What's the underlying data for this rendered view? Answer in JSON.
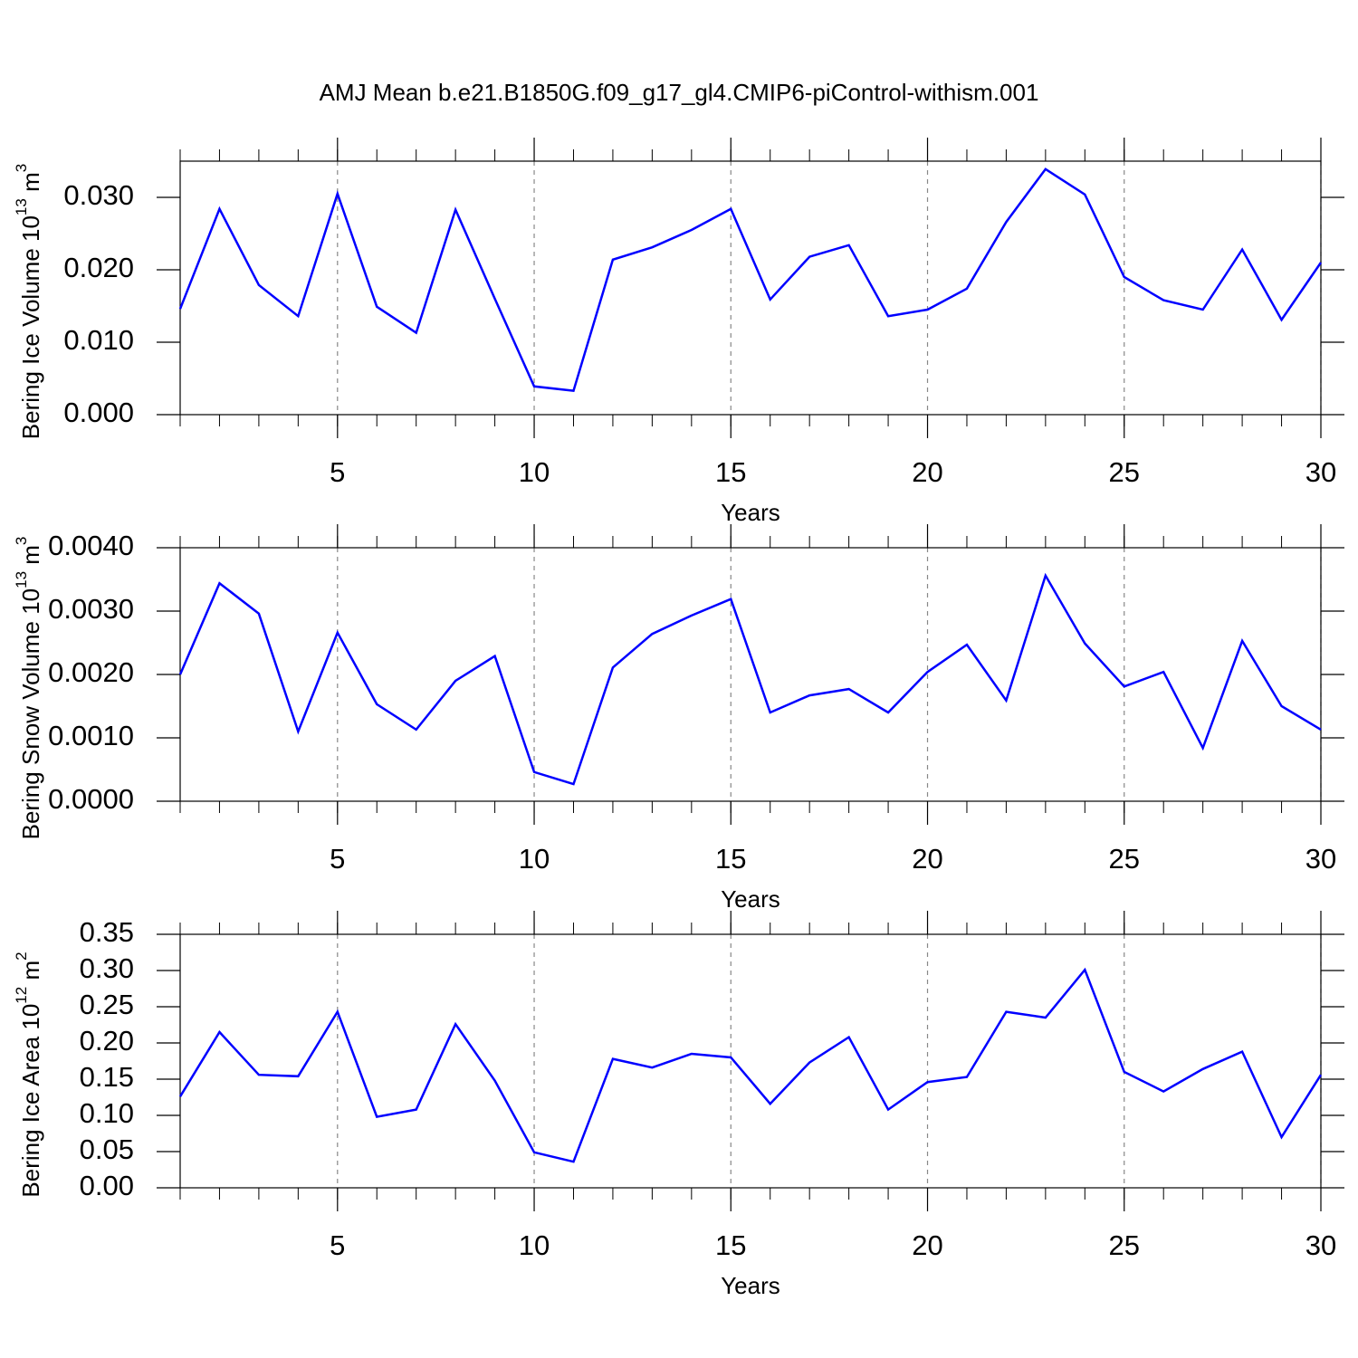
{
  "title": "AMJ Mean b.e21.B1850G.f09_g17_gl4.CMIP6-piControl-withism.001",
  "chart_data": [
    {
      "type": "line",
      "ylabel": [
        "Bering Ice Volume 10",
        "13",
        " m",
        "3"
      ],
      "xlabel": "Years",
      "x": [
        1,
        2,
        3,
        4,
        5,
        6,
        7,
        8,
        9,
        10,
        11,
        12,
        13,
        14,
        15,
        16,
        17,
        18,
        19,
        20,
        21,
        22,
        23,
        24,
        25,
        26,
        27,
        28,
        29,
        30
      ],
      "series": [
        {
          "color": "#0000ff",
          "values": [
            0.0146,
            0.0284,
            0.0179,
            0.0136,
            0.0305,
            0.0149,
            0.0113,
            0.0283,
            0.016,
            0.0039,
            0.0033,
            0.0214,
            0.0231,
            0.0255,
            0.0284,
            0.0159,
            0.0218,
            0.0234,
            0.0136,
            0.0145,
            0.0174,
            0.0266,
            0.0339,
            0.0304,
            0.019,
            0.0158,
            0.0145,
            0.0228,
            0.0131,
            0.021
          ]
        }
      ],
      "xlim": [
        1,
        30
      ],
      "xticks": [
        5,
        10,
        15,
        20,
        25,
        30
      ],
      "ylim": [
        0,
        0.035
      ],
      "yticks": [
        {
          "value": 0,
          "label": "0.000"
        },
        {
          "value": 0.01,
          "label": "0.010"
        },
        {
          "value": 0.02,
          "label": "0.020"
        },
        {
          "value": 0.03,
          "label": "0.030"
        }
      ],
      "grid": "x"
    },
    {
      "type": "line",
      "ylabel": [
        "Bering Snow Volume 10",
        "13",
        " m",
        "3"
      ],
      "xlabel": "Years",
      "x": [
        1,
        2,
        3,
        4,
        5,
        6,
        7,
        8,
        9,
        10,
        11,
        12,
        13,
        14,
        15,
        16,
        17,
        18,
        19,
        20,
        21,
        22,
        23,
        24,
        25,
        26,
        27,
        28,
        29,
        30
      ],
      "series": [
        {
          "color": "#0000ff",
          "values": [
            0.002,
            0.00344,
            0.00296,
            0.0011,
            0.00266,
            0.00153,
            0.00113,
            0.0019,
            0.00229,
            0.00046,
            0.00027,
            0.00211,
            0.00264,
            0.00293,
            0.00319,
            0.0014,
            0.00167,
            0.00177,
            0.0014,
            0.00204,
            0.00247,
            0.00159,
            0.00356,
            0.00249,
            0.00181,
            0.00204,
            0.00084,
            0.00253,
            0.0015,
            0.00113
          ]
        }
      ],
      "xlim": [
        1,
        30
      ],
      "xticks": [
        5,
        10,
        15,
        20,
        25,
        30
      ],
      "ylim": [
        0,
        0.004
      ],
      "yticks": [
        {
          "value": 0,
          "label": "0.0000"
        },
        {
          "value": 0.001,
          "label": "0.0010"
        },
        {
          "value": 0.002,
          "label": "0.0020"
        },
        {
          "value": 0.003,
          "label": "0.0030"
        },
        {
          "value": 0.004,
          "label": "0.0040"
        }
      ],
      "grid": "x"
    },
    {
      "type": "line",
      "ylabel": [
        "Bering Ice Area 10",
        "12",
        " m",
        "2"
      ],
      "xlabel": "Years",
      "x": [
        1,
        2,
        3,
        4,
        5,
        6,
        7,
        8,
        9,
        10,
        11,
        12,
        13,
        14,
        15,
        16,
        17,
        18,
        19,
        20,
        21,
        22,
        23,
        24,
        25,
        26,
        27,
        28,
        29,
        30
      ],
      "series": [
        {
          "color": "#0000ff",
          "values": [
            0.126,
            0.215,
            0.156,
            0.154,
            0.243,
            0.098,
            0.108,
            0.226,
            0.148,
            0.049,
            0.036,
            0.178,
            0.166,
            0.185,
            0.18,
            0.116,
            0.173,
            0.208,
            0.108,
            0.146,
            0.153,
            0.243,
            0.235,
            0.301,
            0.16,
            0.133,
            0.164,
            0.188,
            0.07,
            0.156
          ]
        }
      ],
      "xlim": [
        1,
        30
      ],
      "xticks": [
        5,
        10,
        15,
        20,
        25,
        30
      ],
      "ylim": [
        0,
        0.35
      ],
      "yticks": [
        {
          "value": 0,
          "label": "0.00"
        },
        {
          "value": 0.05,
          "label": "0.05"
        },
        {
          "value": 0.1,
          "label": "0.10"
        },
        {
          "value": 0.15,
          "label": "0.15"
        },
        {
          "value": 0.2,
          "label": "0.20"
        },
        {
          "value": 0.25,
          "label": "0.25"
        },
        {
          "value": 0.3,
          "label": "0.30"
        },
        {
          "value": 0.35,
          "label": "0.35"
        }
      ],
      "grid": "x"
    }
  ]
}
